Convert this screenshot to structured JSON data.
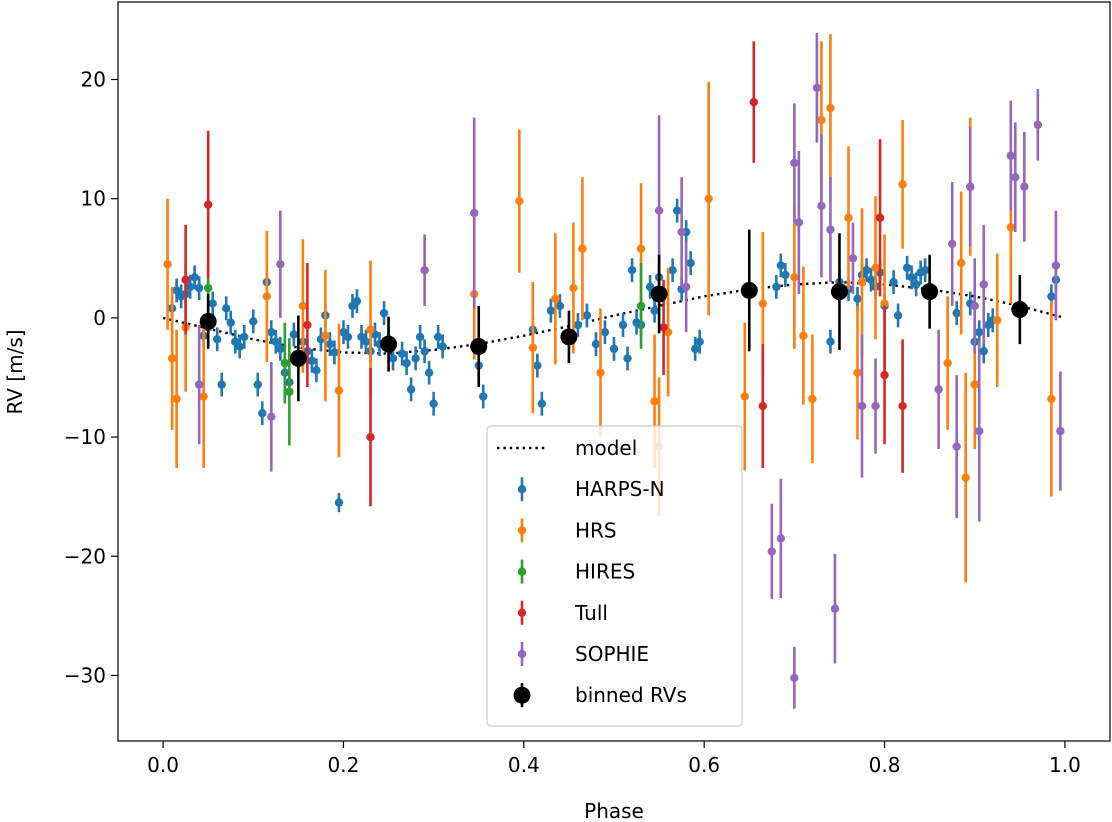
{
  "chart_data": {
    "type": "scatter",
    "xlabel": "Phase",
    "ylabel": "RV [m/s]",
    "xlim": [
      -0.05,
      1.05
    ],
    "ylim": [
      -35.5,
      26.5
    ],
    "xticks": [
      0.0,
      0.2,
      0.4,
      0.6,
      0.8,
      1.0
    ],
    "xtick_labels": [
      "0.0",
      "0.2",
      "0.4",
      "0.6",
      "0.8",
      "1.0"
    ],
    "yticks": [
      -30,
      -20,
      -10,
      0,
      10,
      20
    ],
    "ytick_labels": [
      "−30",
      "−20",
      "−10",
      "0",
      "10",
      "20"
    ],
    "grid": false,
    "legend_placement": "lower-center",
    "model": {
      "name": "model",
      "color": "#000000",
      "style": "dotted",
      "x": [
        0.0,
        0.05,
        0.1,
        0.15,
        0.2,
        0.25,
        0.3,
        0.35,
        0.4,
        0.45,
        0.5,
        0.55,
        0.6,
        0.65,
        0.7,
        0.75,
        0.8,
        0.85,
        0.9,
        0.95,
        1.0
      ],
      "y": [
        0.0,
        -0.9,
        -1.8,
        -2.5,
        -2.9,
        -3.0,
        -2.7,
        -2.2,
        -1.5,
        -0.7,
        0.2,
        1.0,
        1.8,
        2.4,
        2.8,
        3.0,
        2.8,
        2.4,
        1.8,
        1.0,
        0.0
      ]
    },
    "series": [
      {
        "name": "HARPS-N",
        "color": "#1f77b4",
        "points": [
          [
            0.01,
            0.8,
            1.0
          ],
          [
            0.015,
            2.3,
            1.0
          ],
          [
            0.02,
            1.8,
            1.0
          ],
          [
            0.025,
            2.0,
            1.0
          ],
          [
            0.03,
            2.6,
            1.0
          ],
          [
            0.035,
            3.4,
            1.0
          ],
          [
            0.04,
            2.5,
            1.0
          ],
          [
            0.045,
            -1.5,
            1.0
          ],
          [
            0.05,
            -0.8,
            1.0
          ],
          [
            0.055,
            1.2,
            1.0
          ],
          [
            0.06,
            -1.8,
            1.0
          ],
          [
            0.065,
            -5.6,
            1.0
          ],
          [
            0.07,
            0.8,
            1.0
          ],
          [
            0.075,
            -0.4,
            1.0
          ],
          [
            0.08,
            -2.0,
            1.0
          ],
          [
            0.085,
            -2.4,
            1.0
          ],
          [
            0.09,
            -1.6,
            1.0
          ],
          [
            0.1,
            -0.3,
            1.0
          ],
          [
            0.105,
            -5.6,
            1.0
          ],
          [
            0.11,
            -8.0,
            1.0
          ],
          [
            0.115,
            3.0,
            1.0
          ],
          [
            0.12,
            -1.2,
            1.0
          ],
          [
            0.125,
            -2.0,
            1.0
          ],
          [
            0.13,
            -2.6,
            1.0
          ],
          [
            0.135,
            -4.6,
            1.0
          ],
          [
            0.14,
            -5.4,
            1.0
          ],
          [
            0.145,
            -1.4,
            1.0
          ],
          [
            0.15,
            -3.6,
            1.0
          ],
          [
            0.155,
            -2.0,
            1.0
          ],
          [
            0.16,
            -2.8,
            1.0
          ],
          [
            0.165,
            -3.6,
            1.0
          ],
          [
            0.17,
            -4.4,
            1.0
          ],
          [
            0.175,
            -1.8,
            1.0
          ],
          [
            0.18,
            0.2,
            1.0
          ],
          [
            0.185,
            -2.2,
            1.0
          ],
          [
            0.19,
            -2.9,
            1.0
          ],
          [
            0.195,
            -15.5,
            0.8
          ],
          [
            0.2,
            -1.2,
            1.0
          ],
          [
            0.205,
            -1.6,
            1.0
          ],
          [
            0.21,
            1.0,
            1.0
          ],
          [
            0.215,
            1.4,
            1.0
          ],
          [
            0.22,
            -1.6,
            1.0
          ],
          [
            0.225,
            -2.0,
            1.0
          ],
          [
            0.23,
            -2.8,
            1.0
          ],
          [
            0.235,
            -1.4,
            1.0
          ],
          [
            0.24,
            -2.2,
            1.0
          ],
          [
            0.245,
            0.4,
            1.0
          ],
          [
            0.25,
            -1.8,
            1.0
          ],
          [
            0.255,
            -3.4,
            1.0
          ],
          [
            0.265,
            -3.0,
            1.0
          ],
          [
            0.27,
            -3.8,
            1.0
          ],
          [
            0.275,
            -6.0,
            1.0
          ],
          [
            0.28,
            -3.4,
            1.0
          ],
          [
            0.285,
            -1.6,
            1.0
          ],
          [
            0.29,
            -2.8,
            1.0
          ],
          [
            0.295,
            -4.6,
            1.0
          ],
          [
            0.3,
            -7.2,
            1.0
          ],
          [
            0.305,
            -1.6,
            1.0
          ],
          [
            0.31,
            -2.4,
            1.0
          ],
          [
            0.35,
            -4.0,
            1.0
          ],
          [
            0.355,
            -6.6,
            1.0
          ],
          [
            0.41,
            -1.0,
            1.0
          ],
          [
            0.415,
            -4.0,
            1.0
          ],
          [
            0.42,
            -7.2,
            1.0
          ],
          [
            0.43,
            0.6,
            1.0
          ],
          [
            0.44,
            1.0,
            1.0
          ],
          [
            0.46,
            -0.6,
            1.0
          ],
          [
            0.47,
            0.2,
            1.0
          ],
          [
            0.48,
            -2.2,
            1.0
          ],
          [
            0.49,
            -1.2,
            1.0
          ],
          [
            0.5,
            -2.6,
            1.0
          ],
          [
            0.51,
            -0.6,
            1.0
          ],
          [
            0.515,
            -3.4,
            1.0
          ],
          [
            0.52,
            4.0,
            1.0
          ],
          [
            0.525,
            -0.4,
            1.0
          ],
          [
            0.53,
            -0.6,
            1.0
          ],
          [
            0.54,
            2.6,
            1.0
          ],
          [
            0.545,
            0.6,
            1.0
          ],
          [
            0.55,
            3.4,
            1.0
          ],
          [
            0.565,
            4.0,
            1.0
          ],
          [
            0.57,
            9.0,
            1.0
          ],
          [
            0.575,
            2.4,
            1.0
          ],
          [
            0.58,
            7.2,
            1.0
          ],
          [
            0.585,
            4.6,
            1.0
          ],
          [
            0.59,
            -2.6,
            1.0
          ],
          [
            0.595,
            -2.0,
            1.0
          ],
          [
            0.68,
            2.6,
            1.0
          ],
          [
            0.685,
            4.4,
            1.0
          ],
          [
            0.69,
            3.6,
            1.0
          ],
          [
            0.74,
            -2.0,
            1.0
          ],
          [
            0.75,
            3.0,
            1.0
          ],
          [
            0.76,
            2.4,
            1.0
          ],
          [
            0.77,
            1.6,
            1.0
          ],
          [
            0.775,
            3.6,
            1.0
          ],
          [
            0.78,
            4.0,
            1.0
          ],
          [
            0.785,
            3.2,
            1.0
          ],
          [
            0.79,
            2.6,
            1.0
          ],
          [
            0.795,
            3.8,
            1.0
          ],
          [
            0.8,
            1.0,
            1.0
          ],
          [
            0.81,
            3.0,
            1.0
          ],
          [
            0.815,
            0.2,
            1.0
          ],
          [
            0.825,
            4.2,
            1.0
          ],
          [
            0.83,
            3.4,
            1.0
          ],
          [
            0.835,
            2.8,
            1.0
          ],
          [
            0.84,
            3.8,
            1.0
          ],
          [
            0.845,
            4.0,
            1.0
          ],
          [
            0.88,
            0.4,
            1.0
          ],
          [
            0.895,
            1.2,
            1.0
          ],
          [
            0.9,
            -2.0,
            1.0
          ],
          [
            0.905,
            -1.2,
            1.0
          ],
          [
            0.91,
            -2.8,
            1.0
          ],
          [
            0.915,
            -0.6,
            1.0
          ],
          [
            0.92,
            -0.2,
            1.0
          ],
          [
            0.985,
            1.8,
            1.0
          ],
          [
            0.99,
            3.2,
            1.0
          ]
        ]
      },
      {
        "name": "HRS",
        "color": "#ff7f0e",
        "points": [
          [
            0.005,
            4.5,
            5.5
          ],
          [
            0.01,
            -3.4,
            6.0
          ],
          [
            0.015,
            -6.8,
            5.8
          ],
          [
            0.025,
            -0.8,
            5.4
          ],
          [
            0.045,
            -6.6,
            6.0
          ],
          [
            0.115,
            1.8,
            5.5
          ],
          [
            0.155,
            1.0,
            5.6
          ],
          [
            0.18,
            -1.5,
            5.5
          ],
          [
            0.195,
            -6.1,
            5.6
          ],
          [
            0.23,
            -1.0,
            5.8
          ],
          [
            0.345,
            2.0,
            5.5
          ],
          [
            0.395,
            9.8,
            6.0
          ],
          [
            0.41,
            -2.5,
            5.5
          ],
          [
            0.435,
            1.6,
            5.5
          ],
          [
            0.455,
            2.5,
            5.5
          ],
          [
            0.465,
            5.8,
            6.0
          ],
          [
            0.485,
            -4.6,
            5.4
          ],
          [
            0.53,
            5.8,
            5.5
          ],
          [
            0.545,
            -7.0,
            5.6
          ],
          [
            0.55,
            -10.8,
            5.8
          ],
          [
            0.56,
            -1.2,
            5.4
          ],
          [
            0.605,
            10.0,
            9.8
          ],
          [
            0.645,
            -6.6,
            6.2
          ],
          [
            0.665,
            1.2,
            6.0
          ],
          [
            0.7,
            3.4,
            6.0
          ],
          [
            0.71,
            -1.5,
            5.8
          ],
          [
            0.72,
            -6.8,
            5.4
          ],
          [
            0.73,
            16.6,
            6.6
          ],
          [
            0.74,
            17.6,
            6.2
          ],
          [
            0.76,
            8.4,
            6.0
          ],
          [
            0.77,
            -4.6,
            5.6
          ],
          [
            0.775,
            3.0,
            6.2
          ],
          [
            0.79,
            4.2,
            6.0
          ],
          [
            0.8,
            1.2,
            5.8
          ],
          [
            0.82,
            11.2,
            5.4
          ],
          [
            0.87,
            -3.8,
            5.6
          ],
          [
            0.885,
            4.6,
            6.0
          ],
          [
            0.89,
            -13.4,
            8.8
          ],
          [
            0.895,
            11.0,
            5.8
          ],
          [
            0.9,
            -5.6,
            5.4
          ],
          [
            0.925,
            -0.2,
            5.6
          ],
          [
            0.94,
            7.6,
            6.4
          ],
          [
            0.985,
            -6.8,
            8.2
          ]
        ]
      },
      {
        "name": "HIRES",
        "color": "#2ca02c",
        "points": [
          [
            0.05,
            2.5,
            2.2
          ],
          [
            0.135,
            -3.8,
            3.4
          ],
          [
            0.14,
            -6.2,
            4.5
          ],
          [
            0.53,
            1.0,
            3.6
          ]
        ]
      },
      {
        "name": "Tull",
        "color": "#d62728",
        "points": [
          [
            0.025,
            3.2,
            4.6
          ],
          [
            0.05,
            9.5,
            6.2
          ],
          [
            0.16,
            -0.6,
            5.2
          ],
          [
            0.23,
            -10.0,
            5.8
          ],
          [
            0.555,
            -0.8,
            4.0
          ],
          [
            0.655,
            18.1,
            5.1
          ],
          [
            0.665,
            -7.4,
            5.2
          ],
          [
            0.795,
            8.4,
            6.6
          ],
          [
            0.8,
            -4.8,
            5.8
          ],
          [
            0.82,
            -7.4,
            5.6
          ]
        ]
      },
      {
        "name": "SOPHIE",
        "color": "#9467bd",
        "points": [
          [
            0.04,
            -5.6,
            5.0
          ],
          [
            0.12,
            -8.3,
            4.6
          ],
          [
            0.13,
            4.5,
            4.5
          ],
          [
            0.29,
            4.0,
            3.0
          ],
          [
            0.345,
            8.8,
            8.0
          ],
          [
            0.55,
            9.0,
            8.0
          ],
          [
            0.575,
            7.2,
            4.6
          ],
          [
            0.58,
            2.6,
            3.8
          ],
          [
            0.675,
            -19.6,
            4.0
          ],
          [
            0.685,
            -18.5,
            5.0
          ],
          [
            0.7,
            13.0,
            5.0
          ],
          [
            0.705,
            8.0,
            6.0
          ],
          [
            0.725,
            19.3,
            4.6
          ],
          [
            0.73,
            9.4,
            6.0
          ],
          [
            0.74,
            7.4,
            4.4
          ],
          [
            0.745,
            -24.4,
            4.6
          ],
          [
            0.765,
            5.0,
            3.0
          ],
          [
            0.775,
            -7.4,
            6.0
          ],
          [
            0.79,
            -7.4,
            4.0
          ],
          [
            0.86,
            -6.0,
            5.0
          ],
          [
            0.875,
            6.2,
            5.2
          ],
          [
            0.88,
            -10.8,
            6.0
          ],
          [
            0.895,
            11.0,
            5.0
          ],
          [
            0.9,
            1.0,
            4.0
          ],
          [
            0.905,
            -9.5,
            7.6
          ],
          [
            0.91,
            2.8,
            5.0
          ],
          [
            0.94,
            13.6,
            4.6
          ],
          [
            0.945,
            11.8,
            4.6
          ],
          [
            0.955,
            11.0,
            4.6
          ],
          [
            0.97,
            16.2,
            3.0
          ],
          [
            0.99,
            4.4,
            4.6
          ],
          [
            0.995,
            -9.5,
            5.0
          ],
          [
            0.7,
            -30.2,
            2.6
          ]
        ]
      }
    ],
    "binned": {
      "name": "binned RVs",
      "color": "#000000",
      "points": [
        [
          0.05,
          -0.3,
          2.3
        ],
        [
          0.15,
          -3.4,
          3.6
        ],
        [
          0.25,
          -2.2,
          2.3
        ],
        [
          0.35,
          -2.4,
          3.4
        ],
        [
          0.45,
          -1.6,
          2.2
        ],
        [
          0.55,
          2.0,
          3.3
        ],
        [
          0.65,
          2.3,
          5.1
        ],
        [
          0.75,
          2.2,
          4.9
        ],
        [
          0.85,
          2.2,
          3.1
        ],
        [
          0.95,
          0.7,
          2.9
        ]
      ]
    },
    "legend": [
      "model",
      "HARPS-N",
      "HRS",
      "HIRES",
      "Tull",
      "SOPHIE",
      "binned RVs"
    ]
  }
}
